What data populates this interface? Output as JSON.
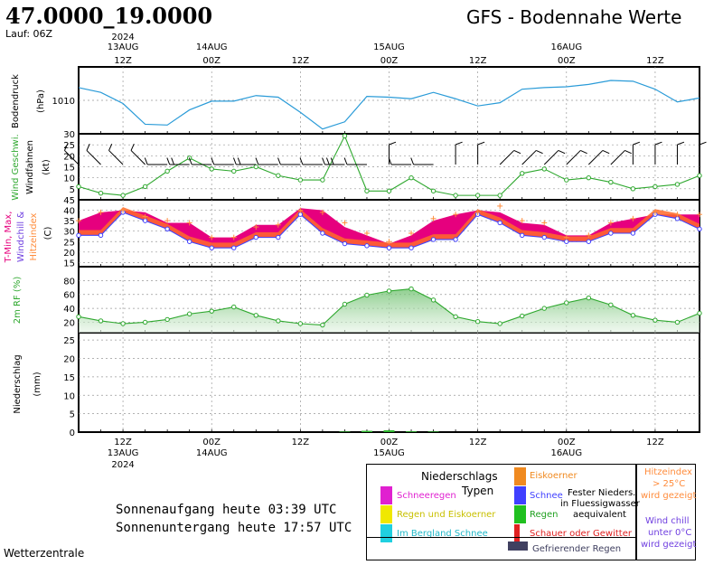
{
  "header": {
    "coords": "47.0000_19.0000",
    "run": "Lauf: 06Z",
    "title": "GFS - Bodennahe Werte"
  },
  "time_axis": {
    "top_labels": [
      {
        "time": "12Z",
        "date": "13AUG",
        "year": "2024"
      },
      {
        "time": "00Z",
        "date": "14AUG"
      },
      {
        "time": "12Z"
      },
      {
        "time": "00Z",
        "date": "15AUG"
      },
      {
        "time": "12Z"
      },
      {
        "time": "00Z",
        "date": "16AUG"
      },
      {
        "time": "12Z"
      }
    ],
    "bottom_labels": [
      {
        "time": "12Z",
        "date": "13AUG",
        "year": "2024"
      },
      {
        "time": "00Z",
        "date": "14AUG"
      },
      {
        "time": "12Z"
      },
      {
        "time": "00Z",
        "date": "15AUG"
      },
      {
        "time": "12Z"
      },
      {
        "time": "00Z",
        "date": "16AUG"
      },
      {
        "time": "12Z"
      }
    ]
  },
  "panels": {
    "pressure": {
      "ylabel": "Bodendruck",
      "unit": "(hPa)",
      "tick": "1010"
    },
    "wind": {
      "ylabel_green": "Wind Geschwi.",
      "ylabel_black": "Windfahnen",
      "unit": "(kt)",
      "ticks": [
        "30",
        "25",
        "20",
        "15",
        "10",
        "5"
      ]
    },
    "temp": {
      "ylabel_red": "T-Min, Max,",
      "ylabel_purple": "Windchill &",
      "ylabel_orange": "Hitzeindex",
      "unit": "(C)",
      "ticks": [
        "45",
        "40",
        "35",
        "30",
        "25",
        "20",
        "15"
      ]
    },
    "rh": {
      "ylabel": "2m RF (%)",
      "ticks": [
        "80",
        "60",
        "40",
        "20"
      ]
    },
    "precip": {
      "ylabel": "Niederschlag",
      "unit": "(mm)",
      "ticks": [
        "25",
        "20",
        "15",
        "10",
        "5",
        "0"
      ]
    }
  },
  "chart_data": [
    {
      "type": "line",
      "name": "pressure",
      "x": [
        "13AUG 06Z",
        "13AUG 09Z",
        "13AUG 12Z",
        "13AUG 15Z",
        "13AUG 18Z",
        "13AUG 21Z",
        "14AUG 00Z",
        "14AUG 03Z",
        "14AUG 06Z",
        "14AUG 09Z",
        "14AUG 12Z",
        "14AUG 15Z",
        "14AUG 18Z",
        "14AUG 21Z",
        "15AUG 00Z",
        "15AUG 03Z",
        "15AUG 06Z",
        "15AUG 09Z",
        "15AUG 12Z",
        "15AUG 15Z",
        "15AUG 18Z",
        "15AUG 21Z",
        "16AUG 00Z",
        "16AUG 03Z",
        "16AUG 06Z",
        "16AUG 09Z",
        "16AUG 12Z",
        "16AUG 15Z",
        "16AUG 18Z"
      ],
      "values": [
        1011.6,
        1011.0,
        1009.6,
        1007.0,
        1006.9,
        1008.8,
        1009.9,
        1009.9,
        1010.6,
        1010.4,
        1008.5,
        1006.4,
        1007.3,
        1010.5,
        1010.4,
        1010.2,
        1011.0,
        1010.2,
        1009.3,
        1009.7,
        1011.4,
        1011.6,
        1011.7,
        1012.0,
        1012.5,
        1012.4,
        1011.4,
        1009.8,
        1010.3
      ],
      "ylim": [
        1005.8,
        1014.2
      ],
      "color": "#2a9bd8"
    },
    {
      "type": "line",
      "name": "wind",
      "x": [
        "13AUG 06Z",
        "13AUG 09Z",
        "13AUG 12Z",
        "13AUG 15Z",
        "13AUG 18Z",
        "13AUG 21Z",
        "14AUG 00Z",
        "14AUG 03Z",
        "14AUG 06Z",
        "14AUG 09Z",
        "14AUG 12Z",
        "14AUG 15Z",
        "14AUG 18Z",
        "14AUG 21Z",
        "15AUG 00Z",
        "15AUG 03Z",
        "15AUG 06Z",
        "15AUG 09Z",
        "15AUG 12Z",
        "15AUG 15Z",
        "15AUG 18Z",
        "15AUG 21Z",
        "16AUG 00Z",
        "16AUG 03Z",
        "16AUG 06Z",
        "16AUG 09Z",
        "16AUG 12Z",
        "16AUG 15Z",
        "16AUG 18Z"
      ],
      "values": [
        6,
        3,
        2,
        6,
        13,
        19,
        14,
        13,
        15,
        11,
        9,
        9,
        29,
        4,
        4,
        10,
        4,
        2,
        2,
        2,
        12,
        14,
        9,
        10,
        8,
        5,
        6,
        7,
        11
      ],
      "ylim": [
        0,
        30
      ],
      "color": "#2fa82f",
      "barb_directions": [
        "NW",
        "NW",
        "NW",
        "NW",
        "W",
        "W",
        "W",
        "W",
        "W",
        "W",
        "W",
        "W",
        "W",
        "W",
        "N",
        "W",
        "W",
        "N",
        "N",
        "NE",
        "NE",
        "NE",
        "NE",
        "NE",
        "NE",
        "N",
        "N",
        "N",
        "N"
      ]
    },
    {
      "type": "area",
      "name": "temperature",
      "x": [
        "13AUG 06Z",
        "13AUG 09Z",
        "13AUG 12Z",
        "13AUG 15Z",
        "13AUG 18Z",
        "13AUG 21Z",
        "14AUG 00Z",
        "14AUG 03Z",
        "14AUG 06Z",
        "14AUG 09Z",
        "14AUG 12Z",
        "14AUG 15Z",
        "14AUG 18Z",
        "14AUG 21Z",
        "15AUG 00Z",
        "15AUG 03Z",
        "15AUG 06Z",
        "15AUG 09Z",
        "15AUG 12Z",
        "15AUG 15Z",
        "15AUG 18Z",
        "15AUG 21Z",
        "16AUG 00Z",
        "16AUG 03Z",
        "16AUG 06Z",
        "16AUG 09Z",
        "16AUG 12Z",
        "16AUG 15Z",
        "16AUG 18Z"
      ],
      "series": [
        {
          "name": "T-Max",
          "values": [
            35,
            39,
            40,
            39,
            34,
            34,
            27,
            27,
            33,
            33,
            41,
            40,
            32,
            28,
            24,
            28,
            35,
            38,
            40,
            39,
            34,
            33,
            28,
            28,
            34,
            36,
            38,
            38,
            38
          ],
          "color": "#e6007e"
        },
        {
          "name": "T-Min",
          "values": [
            28,
            28,
            39,
            35,
            31,
            25,
            22,
            22,
            27,
            27,
            38,
            29,
            24,
            23,
            22,
            22,
            26,
            26,
            38,
            34,
            28,
            27,
            25,
            25,
            29,
            29,
            38,
            36,
            31
          ],
          "color": "#4040ff"
        },
        {
          "name": "Hitzeindex",
          "values": [
            35,
            39,
            40,
            37,
            35,
            34,
            27,
            27,
            32,
            33,
            40,
            39,
            34,
            29,
            25,
            29,
            36,
            38,
            39,
            42,
            35,
            34,
            27,
            28,
            34,
            36,
            39,
            38,
            38
          ],
          "color": "#ff8c3c"
        }
      ],
      "ylim": [
        13,
        45
      ]
    },
    {
      "type": "area",
      "name": "rh",
      "x": [
        "13AUG 06Z",
        "13AUG 09Z",
        "13AUG 12Z",
        "13AUG 15Z",
        "13AUG 18Z",
        "13AUG 21Z",
        "14AUG 00Z",
        "14AUG 03Z",
        "14AUG 06Z",
        "14AUG 09Z",
        "14AUG 12Z",
        "14AUG 15Z",
        "14AUG 18Z",
        "14AUG 21Z",
        "15AUG 00Z",
        "15AUG 03Z",
        "15AUG 06Z",
        "15AUG 09Z",
        "15AUG 12Z",
        "15AUG 15Z",
        "15AUG 18Z",
        "15AUG 21Z",
        "16AUG 00Z",
        "16AUG 03Z",
        "16AUG 06Z",
        "16AUG 09Z",
        "16AUG 12Z",
        "16AUG 15Z",
        "16AUG 18Z"
      ],
      "values": [
        28,
        22,
        18,
        20,
        24,
        32,
        36,
        42,
        30,
        22,
        18,
        16,
        46,
        59,
        65,
        68,
        52,
        28,
        21,
        18,
        29,
        40,
        48,
        55,
        45,
        30,
        23,
        20,
        33
      ],
      "ylim": [
        5,
        100
      ],
      "color": "#2fa82f"
    },
    {
      "type": "bar",
      "name": "precip",
      "x": [
        "14AUG 18Z",
        "14AUG 21Z",
        "15AUG 00Z",
        "15AUG 03Z",
        "15AUG 06Z"
      ],
      "values": [
        0.15,
        0.35,
        0.5,
        0.2,
        0.15
      ],
      "ylim": [
        0,
        27
      ],
      "color": "#2fb82f"
    }
  ],
  "legend": {
    "title_1": "Niederschlags",
    "title_2": "Typen",
    "items": [
      {
        "label": "Schneeregen",
        "color": "#e020d0"
      },
      {
        "label": "Regen und Eiskoerner",
        "color": "#f0e800"
      },
      {
        "label": "Im Bergland Schnee",
        "color": "#20d0e0"
      },
      {
        "label": "Eiskoerner",
        "color": "#f08a20"
      },
      {
        "label": "Schnee",
        "color": "#4040ff"
      },
      {
        "label": "Regen",
        "color": "#20c020"
      },
      {
        "label": "Schauer oder Gewitter",
        "color": "#e02020"
      },
      {
        "label": "Gefrierender Regen",
        "color": "#404060"
      }
    ],
    "note_1": "Fester Nieders.",
    "note_2": "in Fluessigwasser",
    "note_3": "aequivalent",
    "heat_1": "Hitzeindex",
    "heat_2": "> 25°C",
    "heat_3": "wird gezeigt",
    "chill_1": "Wind chill",
    "chill_2": "unter 0°C",
    "chill_3": "wird gezeigt"
  },
  "footer": {
    "sunrise": "Sonnenaufgang heute 03:39 UTC",
    "sunset": "Sonnenuntergang heute 17:57 UTC",
    "brand": "Wetterzentrale"
  }
}
